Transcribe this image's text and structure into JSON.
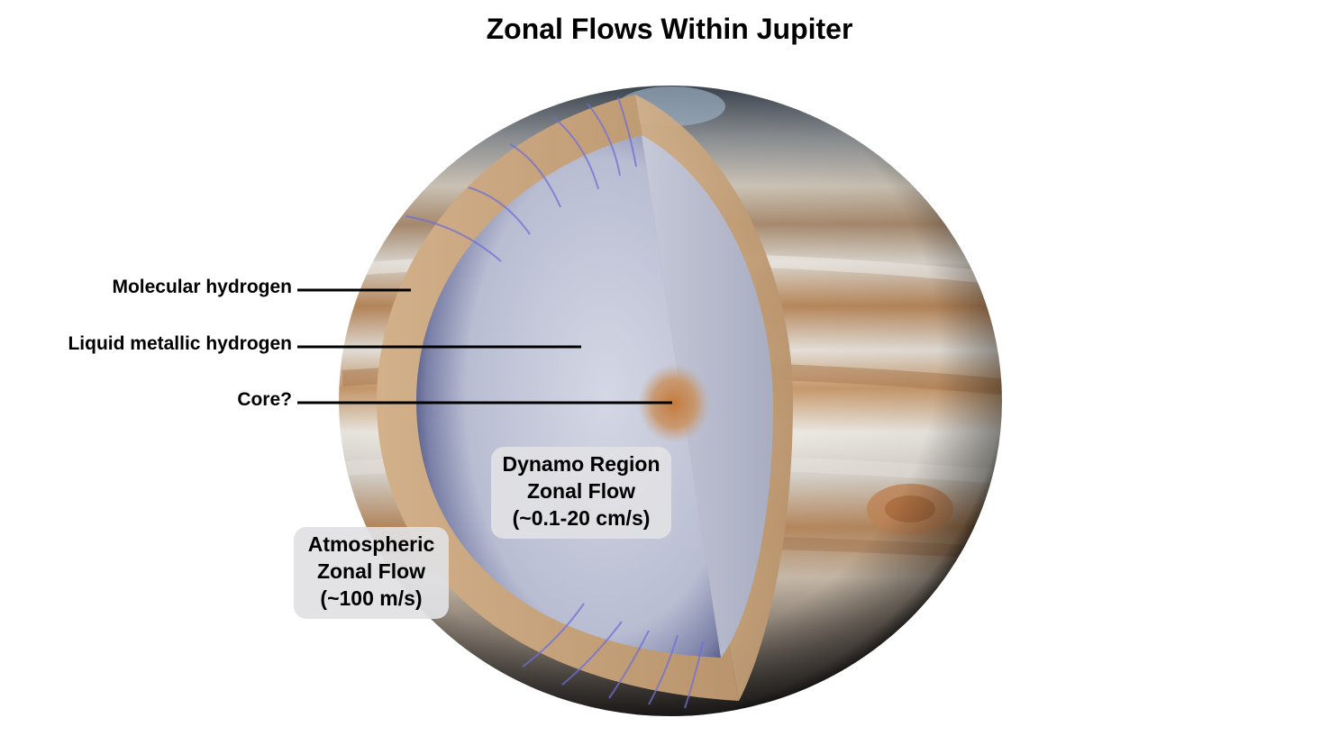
{
  "title": "Zonal Flows Within Jupiter",
  "layers": [
    {
      "label": "Molecular hydrogen"
    },
    {
      "label": "Liquid metallic hydrogen"
    },
    {
      "label": "Core?"
    }
  ],
  "flows": {
    "dynamo": {
      "line1": "Dynamo Region",
      "line2": "Zonal Flow",
      "line3": "(~0.1-20 cm/s)"
    },
    "atmospheric": {
      "line1": "Atmospheric",
      "line2": "Zonal Flow",
      "line3": "(~100 m/s)"
    }
  },
  "colors": {
    "background": "#ffffff",
    "band_tan": "#b8875a",
    "band_light": "#e4e0d8",
    "molecular_layer": "#c9a47c",
    "metallic_layer": "#b9bdd2",
    "core": "#c78850",
    "flow_lines": "#6f6fd6"
  }
}
